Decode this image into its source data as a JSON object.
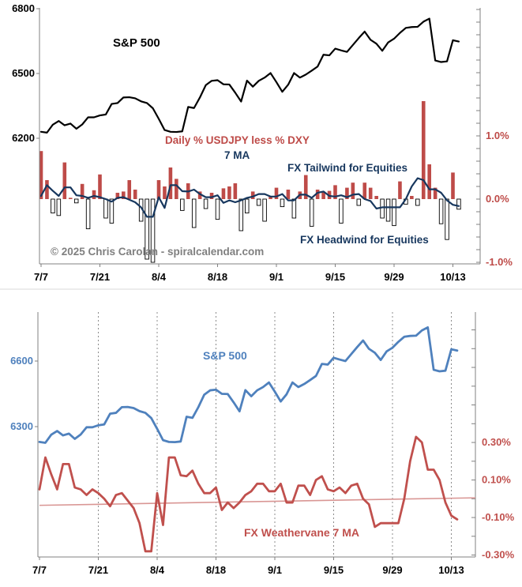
{
  "chart_data": [
    {
      "type": "line+bar",
      "panel": "top",
      "x_tick_labels": [
        "7/7",
        "7/21",
        "8/4",
        "8/18",
        "9/1",
        "9/15",
        "9/29",
        "10/13"
      ],
      "points_per_tick": 10,
      "n_points": 72,
      "left_axis": {
        "ticks": [
          6800,
          6500,
          6200
        ],
        "applies_to": "S&P 500"
      },
      "right_axis": {
        "ticks_pct": [
          1.0,
          0.0,
          -1.0
        ],
        "tick_labels": [
          "1.0%",
          "0.0%",
          "-1.0%"
        ],
        "minor_step_pct": 0.2,
        "range_pct": [
          -1.05,
          3.0
        ],
        "applies_to": "Daily % USDJPY less % DXY"
      },
      "grid": "off",
      "series": [
        {
          "name": "S&P 500",
          "type": "line",
          "axis": "left",
          "color": "#000000",
          "values": [
            6230,
            6226,
            6263,
            6280,
            6260,
            6268,
            6244,
            6264,
            6297,
            6297,
            6306,
            6310,
            6359,
            6363,
            6389,
            6390,
            6385,
            6371,
            6363,
            6339,
            6290,
            6238,
            6230,
            6229,
            6232,
            6345,
            6340,
            6389,
            6446,
            6466,
            6469,
            6450,
            6449,
            6411,
            6370,
            6467,
            6439,
            6466,
            6481,
            6502,
            6460,
            6415,
            6448,
            6502,
            6481,
            6495,
            6513,
            6532,
            6587,
            6584,
            6615,
            6607,
            6600,
            6632,
            6664,
            6694,
            6656,
            6638,
            6605,
            6644,
            6661,
            6688,
            6711,
            6715,
            6716,
            6740,
            6754,
            6560,
            6553,
            6556,
            6654,
            6648
          ]
        },
        {
          "name": "Daily % USDJPY less % DXY",
          "type": "bar",
          "axis": "right",
          "positive_color": "#BE4B48",
          "negative_fill": "#FFFFFF",
          "negative_border": "#000000",
          "values": [
            0.76,
            0.3,
            -0.22,
            -0.26,
            0.58,
            0.02,
            -0.06,
            0.24,
            -0.47,
            0.14,
            0.39,
            -0.3,
            -0.38,
            0.1,
            0.12,
            0.3,
            0.15,
            -0.35,
            -0.95,
            -1.0,
            0.3,
            0.2,
            0.5,
            0.32,
            -0.18,
            0.25,
            -0.45,
            0.12,
            -0.15,
            0.1,
            -0.32,
            0.17,
            0.2,
            0.25,
            -0.5,
            -0.22,
            0.12,
            -0.1,
            -0.35,
            0.05,
            0.18,
            -0.12,
            0.15,
            -0.3,
            0.12,
            0.38,
            -0.43,
            0.15,
            0.12,
            0.13,
            0.22,
            -0.38,
            0.18,
            0.26,
            -0.1,
            0.26,
            0.18,
            0.05,
            -0.3,
            -0.35,
            -0.42,
            0.28,
            -0.08,
            0.05,
            -0.1,
            1.55,
            0.55,
            0.18,
            -0.39,
            -0.64,
            0.42,
            -0.16
          ]
        },
        {
          "name": "7 MA",
          "type": "line",
          "axis": "right",
          "color": "#17375E",
          "values": [
            0.05,
            0.22,
            0.13,
            0.05,
            0.185,
            0.185,
            0.06,
            0.05,
            0.02,
            0.05,
            0.03,
            0.0,
            -0.04,
            0.02,
            0.03,
            -0.01,
            -0.05,
            -0.13,
            -0.28,
            -0.28,
            0.03,
            -0.14,
            0.22,
            0.22,
            0.125,
            0.12,
            0.15,
            0.08,
            0.03,
            0.03,
            0.06,
            -0.06,
            -0.02,
            -0.05,
            -0.02,
            0.02,
            0.04,
            0.08,
            0.08,
            0.04,
            0.04,
            0.08,
            -0.02,
            -0.02,
            0.07,
            0.07,
            0.02,
            0.1,
            0.12,
            0.05,
            0.04,
            0.06,
            0.03,
            0.07,
            0.08,
            0.0,
            -0.03,
            -0.15,
            -0.13,
            -0.13,
            -0.13,
            -0.13,
            0.0,
            0.2,
            0.33,
            0.3,
            0.155,
            0.155,
            0.1,
            -0.02,
            -0.09,
            -0.11
          ]
        }
      ],
      "annotations": [
        {
          "text": "FX Tailwind for Equities",
          "color": "#17375E"
        },
        {
          "text": "FX Headwind for Equities",
          "color": "#17375E"
        },
        {
          "text": "© 2025 Chris Carolan - spiralcalendar.com",
          "color": "#808080"
        }
      ]
    },
    {
      "type": "line",
      "panel": "bottom",
      "x_tick_labels": [
        "7/7",
        "7/21",
        "8/4",
        "8/18",
        "9/1",
        "9/15",
        "9/29",
        "10/13"
      ],
      "points_per_tick": 10,
      "left_axis": {
        "ticks": [
          6600,
          6300
        ],
        "applies_to": "S&P 500"
      },
      "right_axis": {
        "ticks_pct": [
          0.3,
          0.1,
          -0.1,
          -0.3
        ],
        "tick_labels": [
          "0.30%",
          "0.10%",
          "-0.10%",
          "-0.30%"
        ],
        "minor_step_pct": 0.1,
        "applies_to": "FX Weathervane 7 MA"
      },
      "grid": "vertical-dashed",
      "series": [
        {
          "name": "S&P 500",
          "type": "line",
          "axis": "left",
          "color": "#4F81BD",
          "values": [
            6230,
            6226,
            6263,
            6280,
            6260,
            6268,
            6244,
            6264,
            6297,
            6297,
            6306,
            6310,
            6359,
            6363,
            6389,
            6390,
            6385,
            6371,
            6363,
            6339,
            6290,
            6238,
            6230,
            6229,
            6232,
            6345,
            6340,
            6389,
            6446,
            6466,
            6469,
            6450,
            6449,
            6411,
            6370,
            6467,
            6439,
            6466,
            6481,
            6502,
            6460,
            6415,
            6448,
            6502,
            6481,
            6495,
            6513,
            6532,
            6587,
            6584,
            6615,
            6607,
            6600,
            6632,
            6664,
            6694,
            6656,
            6638,
            6605,
            6644,
            6661,
            6688,
            6711,
            6715,
            6716,
            6740,
            6754,
            6560,
            6553,
            6556,
            6654,
            6648
          ]
        },
        {
          "name": "FX Weathervane 7 MA",
          "type": "line",
          "axis": "right",
          "color": "#C0504D",
          "values": [
            0.05,
            0.22,
            0.13,
            0.05,
            0.185,
            0.185,
            0.06,
            0.05,
            0.02,
            0.05,
            0.03,
            0.0,
            -0.04,
            0.02,
            0.03,
            -0.01,
            -0.05,
            -0.13,
            -0.28,
            -0.28,
            0.03,
            -0.14,
            0.22,
            0.22,
            0.125,
            0.12,
            0.15,
            0.08,
            0.03,
            0.03,
            0.06,
            -0.06,
            -0.02,
            -0.05,
            -0.02,
            0.02,
            0.04,
            0.08,
            0.08,
            0.04,
            0.04,
            0.08,
            -0.02,
            -0.02,
            0.07,
            0.07,
            0.02,
            0.1,
            0.12,
            0.05,
            0.04,
            0.06,
            0.03,
            0.07,
            0.08,
            0.0,
            -0.03,
            -0.15,
            -0.13,
            -0.13,
            -0.13,
            -0.13,
            0.0,
            0.2,
            0.33,
            0.3,
            0.155,
            0.155,
            0.1,
            -0.02,
            -0.09,
            -0.11
          ]
        },
        {
          "name": "trendline",
          "type": "line-straight",
          "axis": "right",
          "color": "#D99694",
          "start_pct": -0.035,
          "end_pct": 0.005
        }
      ]
    }
  ],
  "colors": {
    "bar_positive": "#BE4B48",
    "bar_negative_fill": "#FFFFFF",
    "bar_negative_border": "#000000",
    "ma_top": "#17375E",
    "sp500_top": "#000000",
    "sp500_bottom": "#4F81BD",
    "weathervane": "#C0504D",
    "trendline": "#D99694",
    "axis_line": "#808080",
    "gridline": "#808080",
    "x_label": "#000000",
    "right_label_top": "#BE4B48",
    "left_label_top": "#000000",
    "left_label_bottom": "#4F81BD",
    "right_label_bottom": "#C0504D",
    "separator": "#D9D9D9"
  }
}
